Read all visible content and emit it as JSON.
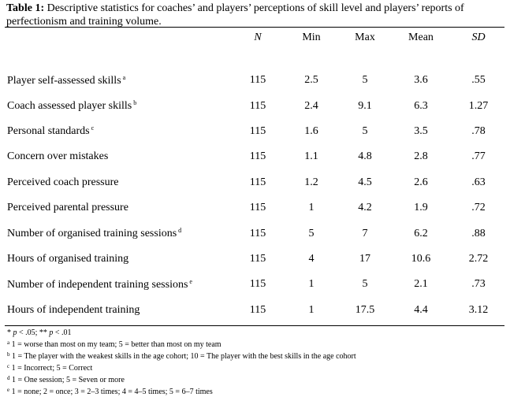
{
  "table": {
    "caption_label": "Table 1:",
    "caption_text": " Descriptive statistics for coaches’ and players’ perceptions of skill level and players’ reports of perfectionism and training volume.",
    "columns": [
      "N",
      "Min",
      "Max",
      "Mean",
      "SD"
    ],
    "rows": [
      {
        "label": "Player self-assessed skills",
        "sup": "a",
        "n": "115",
        "min": "2.5",
        "max": "5",
        "mean": "3.6",
        "sd": ".55"
      },
      {
        "label": "Coach assessed player skills",
        "sup": "b",
        "n": "115",
        "min": "2.4",
        "max": "9.1",
        "mean": "6.3",
        "sd": "1.27"
      },
      {
        "label": "Personal standards",
        "sup": "c",
        "n": "115",
        "min": "1.6",
        "max": "5",
        "mean": "3.5",
        "sd": ".78"
      },
      {
        "label": "Concern over mistakes",
        "sup": "",
        "n": "115",
        "min": "1.1",
        "max": "4.8",
        "mean": "2.8",
        "sd": ".77"
      },
      {
        "label": "Perceived coach pressure",
        "sup": "",
        "n": "115",
        "min": "1.2",
        "max": "4.5",
        "mean": "2.6",
        "sd": ".63"
      },
      {
        "label": "Perceived parental pressure",
        "sup": "",
        "n": "115",
        "min": "1",
        "max": "4.2",
        "mean": "1.9",
        "sd": ".72"
      },
      {
        "label": "Number of organised training sessions",
        "sup": "d",
        "n": "115",
        "min": "5",
        "max": "7",
        "mean": "6.2",
        "sd": ".88"
      },
      {
        "label": "Hours of organised training",
        "sup": "",
        "n": "115",
        "min": "4",
        "max": "17",
        "mean": "10.6",
        "sd": "2.72"
      },
      {
        "label": "Number of independent training sessions",
        "sup": "e",
        "n": "115",
        "min": "1",
        "max": "5",
        "mean": "2.1",
        "sd": ".73"
      },
      {
        "label": "Hours of independent training",
        "sup": "",
        "n": "115",
        "min": "1",
        "max": "17.5",
        "mean": "4.4",
        "sd": "3.12"
      }
    ],
    "notes": {
      "significance": {
        "p1": "p",
        "t1": " < .05; ** ",
        "p2": "p",
        "t2": " < .01",
        "prefix": "* "
      },
      "footnotes": [
        {
          "mark": "a",
          "text": " 1 = worse than most on my team; 5 = better than most on my team"
        },
        {
          "mark": "b",
          "text": " 1 = The player with the weakest skills in the age cohort; 10 = The player with the best skills in the age cohort"
        },
        {
          "mark": "c",
          "text": " 1 = Incorrect; 5  = Correct"
        },
        {
          "mark": "d",
          "text": " 1 = One session; 5 = Seven or more"
        },
        {
          "mark": "e",
          "text": " 1 = none; 2 = once; 3 = 2–3 times; 4 = 4–5 times; 5 = 6–7 times"
        }
      ]
    }
  }
}
